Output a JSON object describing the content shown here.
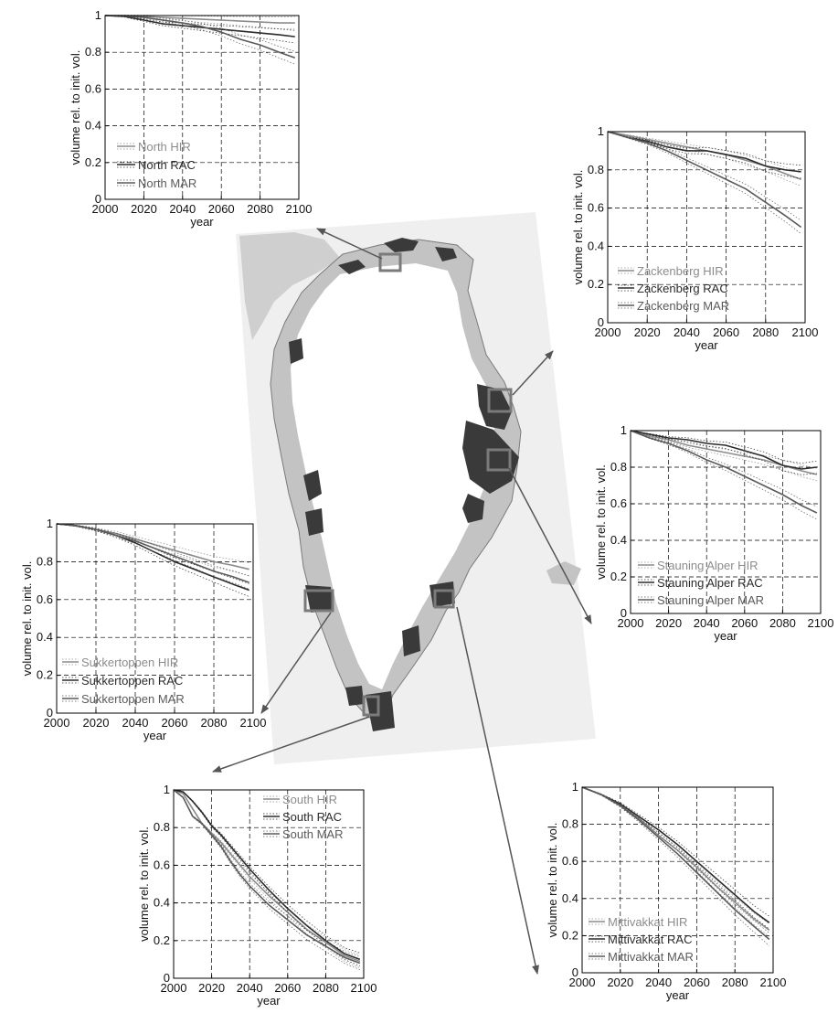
{
  "colors": {
    "hir": "#8c8c8c",
    "rac": "#2b2b2b",
    "mar": "#5a5a5a",
    "map_bg": "#efefef",
    "land": "#ffffff",
    "ice": "#bdbdbd",
    "glacier": "#3a3a3a"
  },
  "chart_data": [
    {
      "id": "north",
      "type": "line",
      "xlabel": "year",
      "ylabel": "volume rel. to init. vol.",
      "xlim": [
        2000,
        2100
      ],
      "ylim": [
        0,
        1
      ],
      "xticks": [
        2000,
        2020,
        2040,
        2060,
        2080,
        2100
      ],
      "yticks": [
        0,
        0.2,
        0.4,
        0.6,
        0.8,
        1
      ],
      "yticklabels": [
        "0",
        "0.2",
        "0.4",
        "0.6",
        "0.8",
        "1"
      ],
      "grid": true,
      "legend_position": "bottom-left",
      "x": [
        2000,
        2010,
        2020,
        2030,
        2040,
        2050,
        2060,
        2070,
        2080,
        2090,
        2098
      ],
      "series": [
        {
          "name": "North HIR",
          "key": "hir",
          "values": [
            1,
            1,
            0.995,
            0.99,
            0.985,
            0.98,
            0.975,
            0.97,
            0.965,
            0.96,
            0.96
          ]
        },
        {
          "name": "North RAC",
          "key": "rac",
          "values": [
            1,
            0.995,
            0.975,
            0.955,
            0.945,
            0.935,
            0.925,
            0.915,
            0.905,
            0.895,
            0.885
          ]
        },
        {
          "name": "North MAR",
          "key": "mar",
          "values": [
            1,
            0.998,
            0.99,
            0.975,
            0.96,
            0.94,
            0.91,
            0.87,
            0.84,
            0.8,
            0.77
          ]
        }
      ]
    },
    {
      "id": "zackenberg",
      "type": "line",
      "xlabel": "year",
      "ylabel": "volume rel. to init. vol.",
      "xlim": [
        2000,
        2100
      ],
      "ylim": [
        0,
        1
      ],
      "xticks": [
        2000,
        2020,
        2040,
        2060,
        2080,
        2100
      ],
      "yticks": [
        0,
        0.2,
        0.4,
        0.6,
        0.8,
        1
      ],
      "yticklabels": [
        "0",
        "0.2",
        "0.4",
        "0.6",
        "0.8",
        "1"
      ],
      "grid": true,
      "legend_position": "bottom-left",
      "x": [
        2000,
        2010,
        2020,
        2030,
        2040,
        2050,
        2060,
        2070,
        2080,
        2090,
        2098
      ],
      "series": [
        {
          "name": "Zackenberg HIR",
          "key": "hir",
          "values": [
            1,
            0.98,
            0.96,
            0.94,
            0.92,
            0.9,
            0.88,
            0.85,
            0.82,
            0.78,
            0.75
          ]
        },
        {
          "name": "Zackenberg RAC",
          "key": "rac",
          "values": [
            1,
            0.97,
            0.95,
            0.92,
            0.9,
            0.9,
            0.88,
            0.86,
            0.82,
            0.8,
            0.79
          ]
        },
        {
          "name": "Zackenberg MAR",
          "key": "mar",
          "values": [
            1,
            0.97,
            0.94,
            0.9,
            0.85,
            0.8,
            0.75,
            0.7,
            0.63,
            0.56,
            0.5
          ]
        }
      ]
    },
    {
      "id": "stauning",
      "type": "line",
      "xlabel": "year",
      "ylabel": "volume rel. to init. vol.",
      "xlim": [
        2000,
        2100
      ],
      "ylim": [
        0,
        1
      ],
      "xticks": [
        2000,
        2020,
        2040,
        2060,
        2080,
        2100
      ],
      "yticks": [
        0,
        0.2,
        0.4,
        0.6,
        0.8,
        1
      ],
      "yticklabels": [
        "0",
        "0.2",
        "0.4",
        "0.6",
        "0.8",
        "1"
      ],
      "grid": true,
      "legend_position": "bottom-left",
      "x": [
        2000,
        2010,
        2020,
        2030,
        2040,
        2050,
        2060,
        2070,
        2080,
        2090,
        2098
      ],
      "series": [
        {
          "name": "Stauning Alper HIR",
          "key": "hir",
          "values": [
            1,
            0.97,
            0.95,
            0.92,
            0.9,
            0.88,
            0.86,
            0.84,
            0.81,
            0.78,
            0.76
          ]
        },
        {
          "name": "Stauning Alper RAC",
          "key": "rac",
          "values": [
            1,
            0.98,
            0.96,
            0.95,
            0.93,
            0.92,
            0.89,
            0.86,
            0.81,
            0.79,
            0.8
          ]
        },
        {
          "name": "Stauning Alper MAR",
          "key": "mar",
          "values": [
            1,
            0.96,
            0.93,
            0.89,
            0.84,
            0.8,
            0.75,
            0.7,
            0.65,
            0.59,
            0.55
          ]
        }
      ]
    },
    {
      "id": "sukkertoppen",
      "type": "line",
      "xlabel": "year",
      "ylabel": "volume rel. to init. vol.",
      "xlim": [
        2000,
        2100
      ],
      "ylim": [
        0,
        1
      ],
      "xticks": [
        2000,
        2020,
        2040,
        2060,
        2080,
        2100
      ],
      "yticks": [
        0,
        0.2,
        0.4,
        0.6,
        0.8,
        1
      ],
      "yticklabels": [
        "0",
        "0.2",
        "0.4",
        "0.6",
        "0.8",
        "1"
      ],
      "grid": true,
      "legend_position": "bottom-left",
      "x": [
        2000,
        2010,
        2020,
        2030,
        2040,
        2050,
        2060,
        2070,
        2080,
        2090,
        2098
      ],
      "series": [
        {
          "name": "Sukkertoppen HIR",
          "key": "hir",
          "values": [
            1,
            0.99,
            0.97,
            0.95,
            0.92,
            0.89,
            0.86,
            0.83,
            0.8,
            0.78,
            0.76
          ]
        },
        {
          "name": "Sukkertoppen RAC",
          "key": "rac",
          "values": [
            1,
            0.99,
            0.97,
            0.94,
            0.9,
            0.85,
            0.8,
            0.76,
            0.72,
            0.68,
            0.65
          ]
        },
        {
          "name": "Sukkertoppen MAR",
          "key": "mar",
          "values": [
            1,
            0.99,
            0.97,
            0.94,
            0.91,
            0.87,
            0.83,
            0.79,
            0.75,
            0.72,
            0.69
          ]
        }
      ]
    },
    {
      "id": "south",
      "type": "line",
      "xlabel": "year",
      "ylabel": "volume rel. to init. vol.",
      "xlim": [
        2000,
        2100
      ],
      "ylim": [
        0,
        1
      ],
      "xticks": [
        2000,
        2020,
        2040,
        2060,
        2080,
        2100
      ],
      "yticks": [
        0,
        0.2,
        0.4,
        0.6,
        0.8,
        1
      ],
      "yticklabels": [
        "0",
        "0.2",
        "0.4",
        "0.6",
        "0.8",
        "1"
      ],
      "grid": true,
      "legend_position": "top-right",
      "x": [
        2000,
        2005,
        2010,
        2015,
        2020,
        2025,
        2030,
        2035,
        2040,
        2050,
        2060,
        2070,
        2080,
        2090,
        2098
      ],
      "series": [
        {
          "name": "South HIR",
          "key": "hir",
          "values": [
            1,
            0.98,
            0.9,
            0.82,
            0.77,
            0.72,
            0.66,
            0.6,
            0.54,
            0.44,
            0.35,
            0.26,
            0.19,
            0.12,
            0.09
          ]
        },
        {
          "name": "South RAC",
          "key": "rac",
          "values": [
            1,
            0.99,
            0.94,
            0.88,
            0.81,
            0.76,
            0.7,
            0.64,
            0.58,
            0.47,
            0.37,
            0.28,
            0.2,
            0.13,
            0.1
          ]
        },
        {
          "name": "South MAR",
          "key": "mar",
          "values": [
            1,
            0.96,
            0.86,
            0.82,
            0.76,
            0.7,
            0.62,
            0.55,
            0.49,
            0.39,
            0.31,
            0.23,
            0.17,
            0.11,
            0.08
          ]
        }
      ]
    },
    {
      "id": "mittivakkat",
      "type": "line",
      "xlabel": "year",
      "ylabel": "volume rel. to init. vol.",
      "xlim": [
        2000,
        2100
      ],
      "ylim": [
        0,
        1
      ],
      "xticks": [
        2000,
        2020,
        2040,
        2060,
        2080,
        2100
      ],
      "yticks": [
        0,
        0.2,
        0.4,
        0.6,
        0.8,
        1
      ],
      "yticklabels": [
        "0",
        "0.2",
        "0.4",
        "0.6",
        "0.8",
        "1"
      ],
      "grid": true,
      "legend_position": "bottom-left",
      "x": [
        2000,
        2010,
        2020,
        2030,
        2040,
        2050,
        2060,
        2070,
        2080,
        2090,
        2098
      ],
      "series": [
        {
          "name": "Mittivakkat HIR",
          "key": "hir",
          "values": [
            1,
            0.96,
            0.9,
            0.83,
            0.74,
            0.66,
            0.57,
            0.47,
            0.38,
            0.29,
            0.23
          ]
        },
        {
          "name": "Mittivakkat RAC",
          "key": "rac",
          "values": [
            1,
            0.96,
            0.91,
            0.84,
            0.77,
            0.69,
            0.6,
            0.51,
            0.42,
            0.33,
            0.27
          ]
        },
        {
          "name": "Mittivakkat MAR",
          "key": "mar",
          "values": [
            1,
            0.96,
            0.9,
            0.82,
            0.73,
            0.64,
            0.54,
            0.44,
            0.34,
            0.25,
            0.18
          ]
        }
      ]
    }
  ]
}
